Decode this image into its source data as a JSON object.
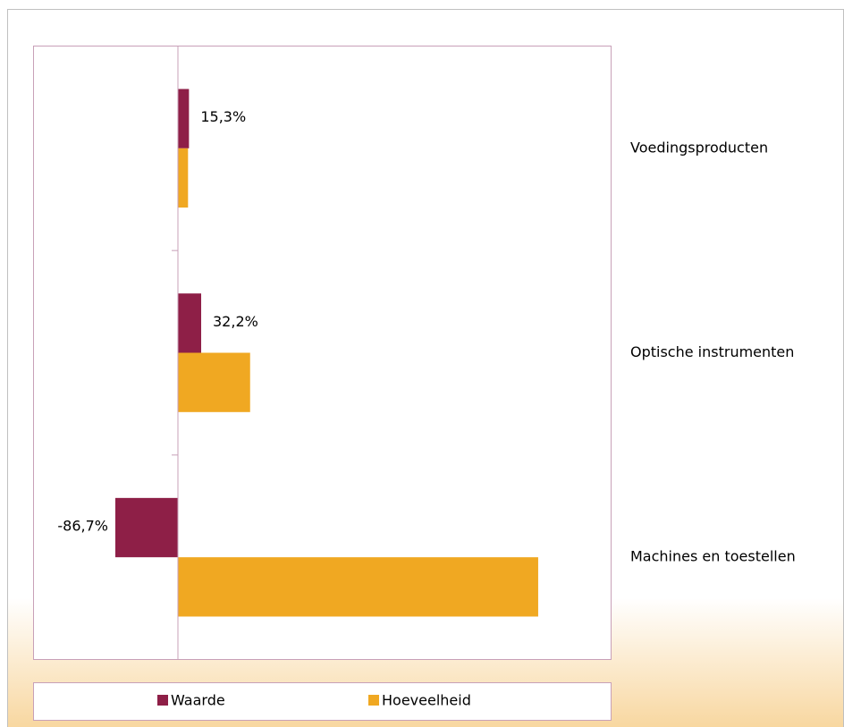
{
  "chart_data": {
    "type": "bar",
    "orientation": "horizontal",
    "categories": [
      "Voedingsproducten",
      "Optische instrumenten",
      "Machines en toestellen"
    ],
    "series": [
      {
        "name": "Waarde",
        "color": "#8e1f47",
        "values": [
          15.3,
          32.2,
          -86.7
        ],
        "value_labels": [
          "15,3%",
          "32,2%",
          "-86,7%"
        ]
      },
      {
        "name": "Hoeveelheid",
        "color": "#f0a822",
        "values": [
          14,
          100,
          499
        ]
      }
    ],
    "xlim": [
      -200,
      600
    ],
    "legend": "bottom"
  }
}
